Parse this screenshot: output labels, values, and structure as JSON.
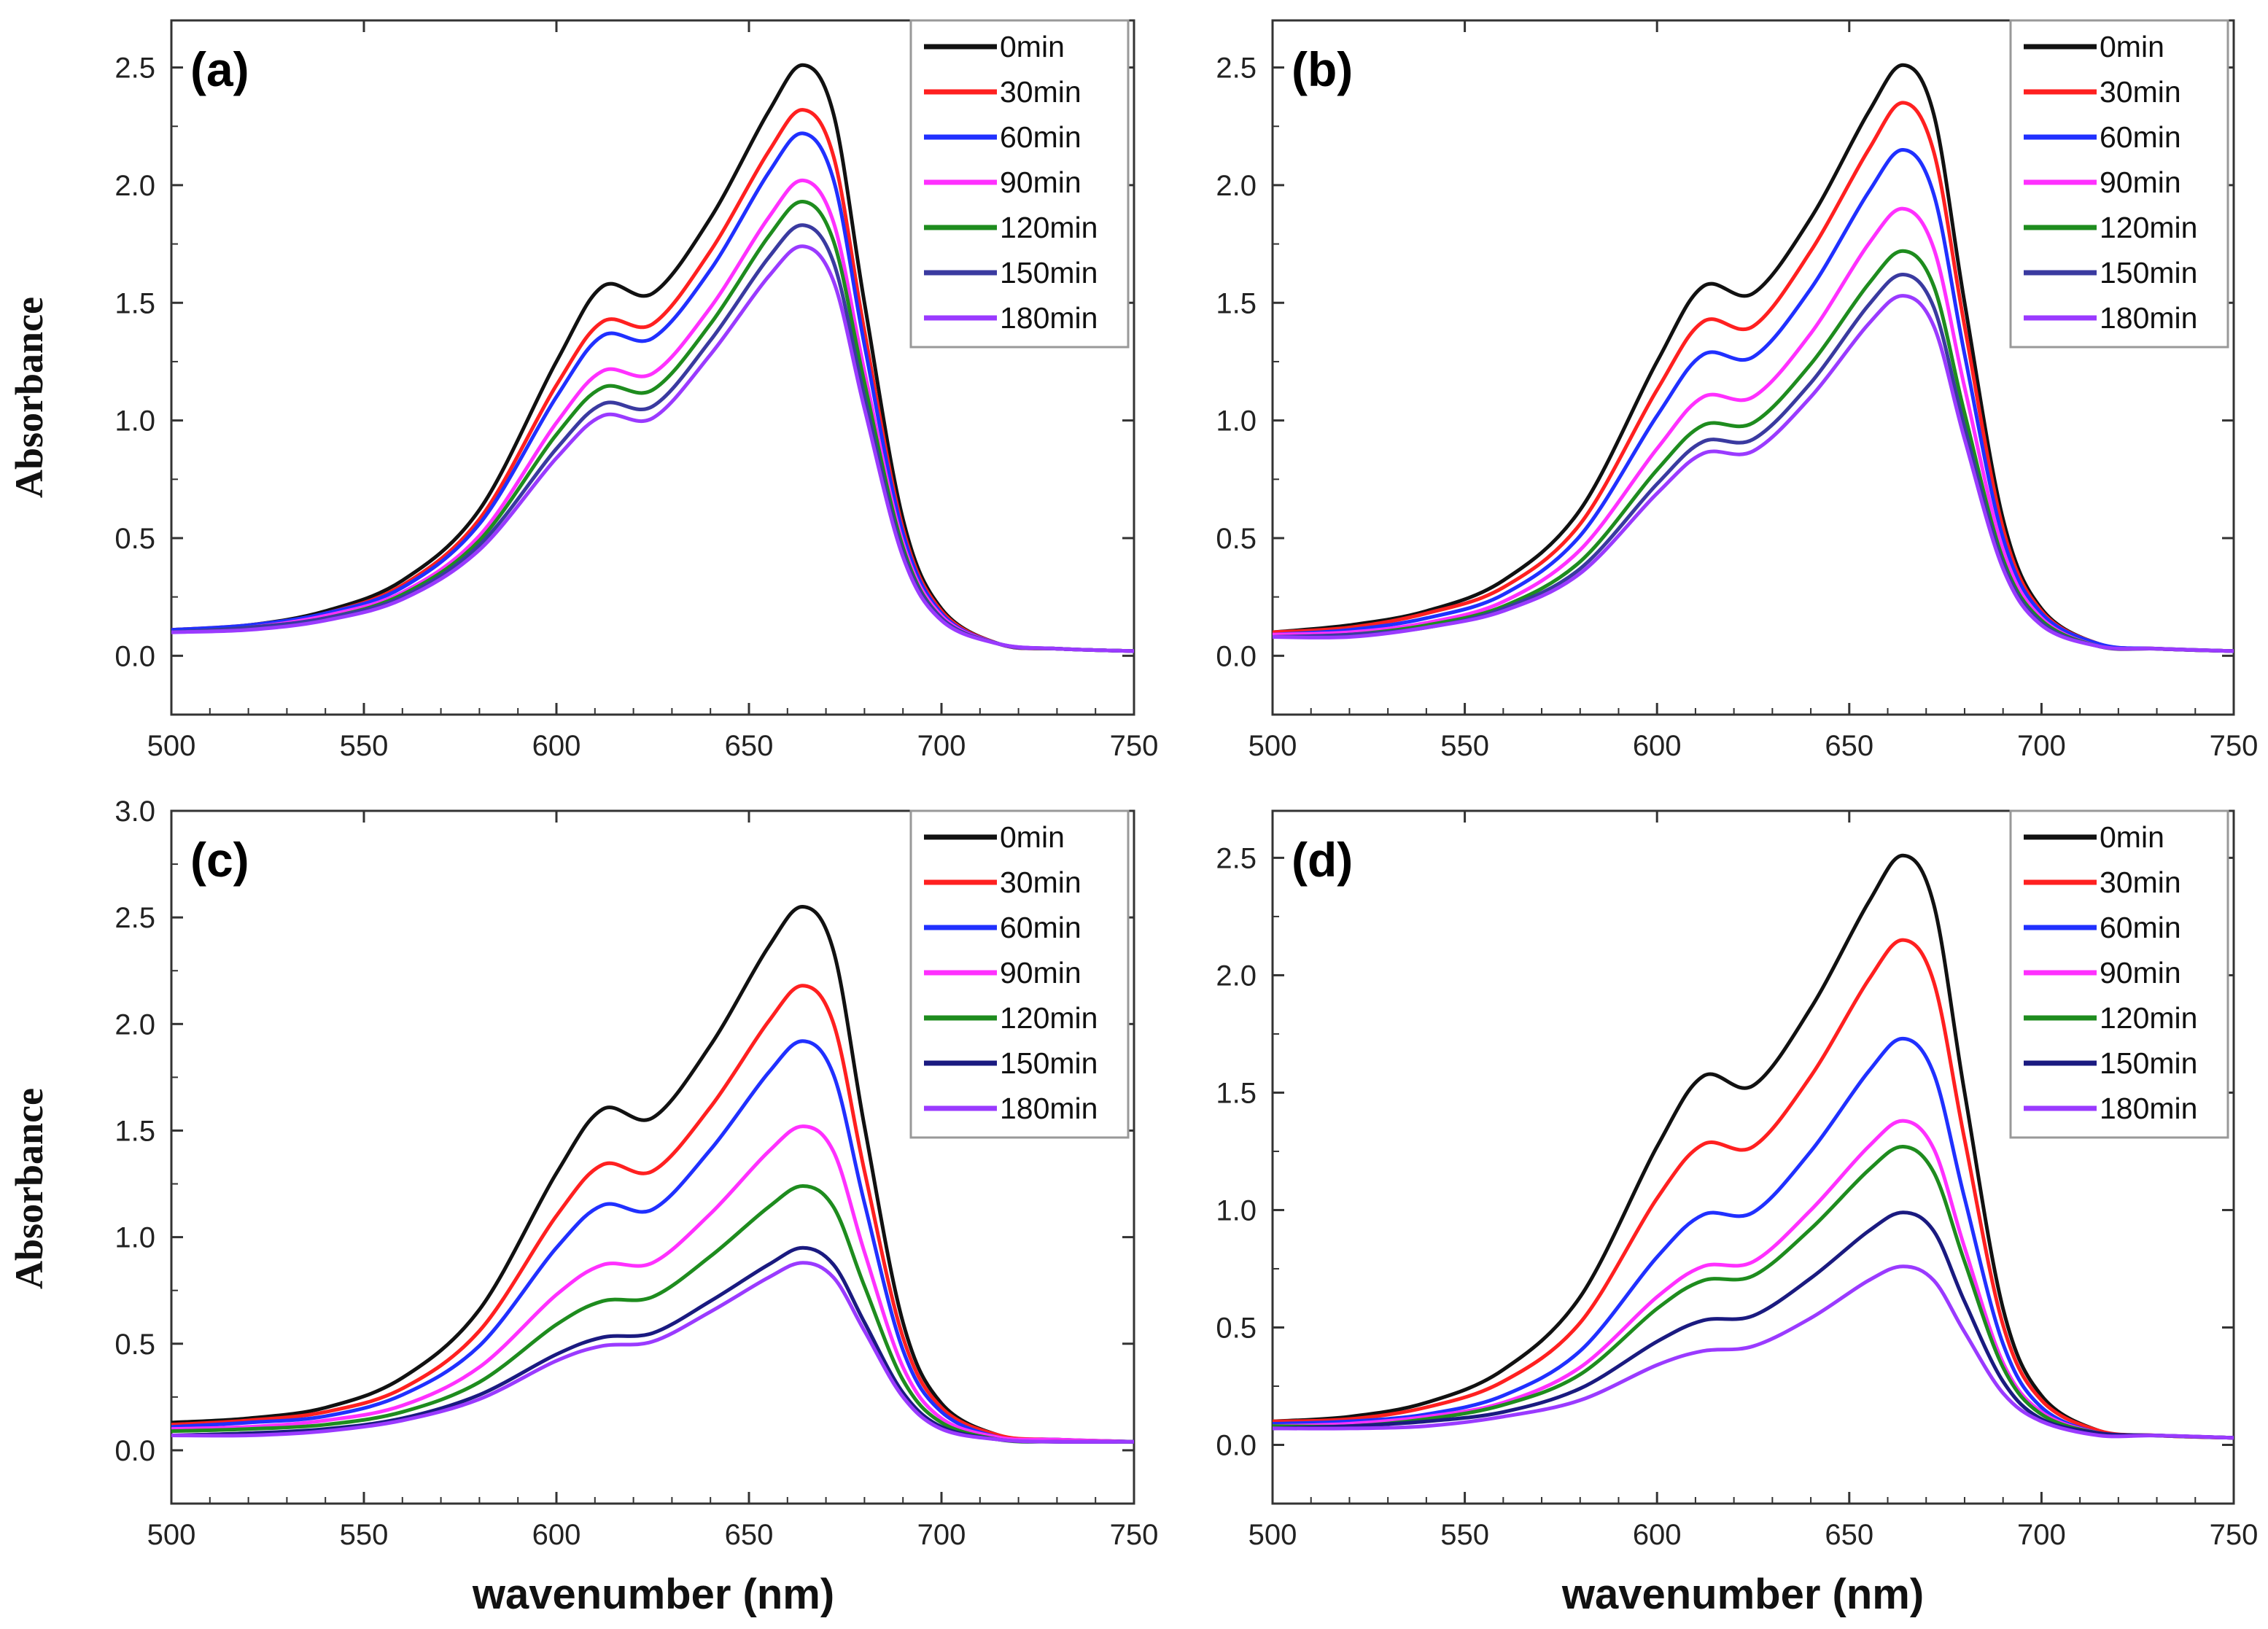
{
  "chart_data": [
    {
      "type": "line",
      "panel": "(a)",
      "xlabel": "wavenumber (nm)",
      "ylabel": "Absorbance",
      "xlim": [
        500,
        750
      ],
      "ylim": [
        -0.25,
        2.7
      ],
      "xticks": [
        "500",
        "550",
        "600",
        "650",
        "700",
        "750"
      ],
      "yticks": [
        "0.0",
        "0.5",
        "1.0",
        "1.5",
        "2.0",
        "2.5"
      ],
      "legend_position": "top-right",
      "x": [
        500,
        520,
        540,
        560,
        580,
        600,
        612,
        625,
        640,
        655,
        664,
        672,
        680,
        690,
        700,
        715,
        730,
        750
      ],
      "series": [
        {
          "name": "0min",
          "color": "#111111",
          "values": [
            0.11,
            0.13,
            0.19,
            0.32,
            0.62,
            1.25,
            1.57,
            1.54,
            1.86,
            2.31,
            2.51,
            2.3,
            1.5,
            0.58,
            0.2,
            0.05,
            0.03,
            0.02
          ]
        },
        {
          "name": "30min",
          "color": "#ff2020",
          "values": [
            0.11,
            0.13,
            0.18,
            0.3,
            0.58,
            1.15,
            1.42,
            1.41,
            1.72,
            2.14,
            2.32,
            2.12,
            1.38,
            0.54,
            0.19,
            0.05,
            0.03,
            0.02
          ]
        },
        {
          "name": "60min",
          "color": "#2030ff",
          "values": [
            0.11,
            0.13,
            0.18,
            0.29,
            0.56,
            1.1,
            1.36,
            1.35,
            1.64,
            2.05,
            2.22,
            2.02,
            1.32,
            0.52,
            0.18,
            0.05,
            0.03,
            0.02
          ]
        },
        {
          "name": "90min",
          "color": "#ff30ff",
          "values": [
            0.1,
            0.12,
            0.17,
            0.27,
            0.51,
            0.99,
            1.21,
            1.2,
            1.48,
            1.86,
            2.02,
            1.84,
            1.21,
            0.48,
            0.17,
            0.05,
            0.03,
            0.02
          ]
        },
        {
          "name": "120min",
          "color": "#1e8c1e",
          "values": [
            0.1,
            0.12,
            0.16,
            0.26,
            0.49,
            0.94,
            1.14,
            1.13,
            1.41,
            1.78,
            1.93,
            1.76,
            1.16,
            0.46,
            0.16,
            0.05,
            0.03,
            0.02
          ]
        },
        {
          "name": "150min",
          "color": "#3a3aa0",
          "values": [
            0.1,
            0.12,
            0.16,
            0.25,
            0.47,
            0.88,
            1.07,
            1.06,
            1.34,
            1.69,
            1.83,
            1.67,
            1.1,
            0.44,
            0.16,
            0.05,
            0.03,
            0.02
          ]
        },
        {
          "name": "180min",
          "color": "#9a3aff",
          "values": [
            0.1,
            0.11,
            0.15,
            0.24,
            0.45,
            0.84,
            1.02,
            1.01,
            1.28,
            1.61,
            1.74,
            1.59,
            1.05,
            0.42,
            0.15,
            0.05,
            0.03,
            0.02
          ]
        }
      ]
    },
    {
      "type": "line",
      "panel": "(b)",
      "xlabel": "wavenumber (nm)",
      "ylabel": "Absorbance",
      "xlim": [
        500,
        750
      ],
      "ylim": [
        -0.25,
        2.7
      ],
      "xticks": [
        "500",
        "550",
        "600",
        "650",
        "700",
        "750"
      ],
      "yticks": [
        "0.0",
        "0.5",
        "1.0",
        "1.5",
        "2.0",
        "2.5"
      ],
      "legend_position": "top-right",
      "x": [
        500,
        520,
        540,
        560,
        580,
        600,
        612,
        625,
        640,
        655,
        664,
        672,
        680,
        690,
        700,
        715,
        730,
        750
      ],
      "series": [
        {
          "name": "0min",
          "color": "#111111",
          "values": [
            0.1,
            0.13,
            0.19,
            0.32,
            0.62,
            1.25,
            1.57,
            1.54,
            1.86,
            2.31,
            2.51,
            2.3,
            1.5,
            0.58,
            0.2,
            0.05,
            0.03,
            0.02
          ]
        },
        {
          "name": "30min",
          "color": "#ff2020",
          "values": [
            0.1,
            0.12,
            0.18,
            0.29,
            0.56,
            1.13,
            1.42,
            1.4,
            1.72,
            2.15,
            2.35,
            2.14,
            1.4,
            0.54,
            0.19,
            0.05,
            0.03,
            0.02
          ]
        },
        {
          "name": "60min",
          "color": "#2030ff",
          "values": [
            0.09,
            0.11,
            0.16,
            0.26,
            0.51,
            1.02,
            1.28,
            1.27,
            1.56,
            1.97,
            2.15,
            1.96,
            1.28,
            0.5,
            0.18,
            0.05,
            0.03,
            0.02
          ]
        },
        {
          "name": "90min",
          "color": "#ff30ff",
          "values": [
            0.09,
            0.1,
            0.14,
            0.23,
            0.45,
            0.88,
            1.1,
            1.1,
            1.37,
            1.75,
            1.9,
            1.73,
            1.14,
            0.45,
            0.16,
            0.04,
            0.03,
            0.02
          ]
        },
        {
          "name": "120min",
          "color": "#1e8c1e",
          "values": [
            0.08,
            0.09,
            0.13,
            0.21,
            0.4,
            0.79,
            0.98,
            0.99,
            1.24,
            1.58,
            1.72,
            1.57,
            1.03,
            0.41,
            0.15,
            0.04,
            0.03,
            0.02
          ]
        },
        {
          "name": "150min",
          "color": "#3a3aa0",
          "values": [
            0.08,
            0.09,
            0.12,
            0.2,
            0.37,
            0.73,
            0.91,
            0.92,
            1.16,
            1.49,
            1.62,
            1.48,
            0.97,
            0.39,
            0.14,
            0.04,
            0.03,
            0.02
          ]
        },
        {
          "name": "180min",
          "color": "#9a3aff",
          "values": [
            0.08,
            0.08,
            0.12,
            0.19,
            0.35,
            0.69,
            0.86,
            0.87,
            1.1,
            1.41,
            1.53,
            1.4,
            0.92,
            0.37,
            0.13,
            0.04,
            0.03,
            0.02
          ]
        }
      ]
    },
    {
      "type": "line",
      "panel": "(c)",
      "xlabel": "wavenumber (nm)",
      "ylabel": "Absorbance",
      "xlim": [
        500,
        750
      ],
      "ylim": [
        -0.25,
        3.0
      ],
      "xticks": [
        "500",
        "550",
        "600",
        "650",
        "700",
        "750"
      ],
      "yticks": [
        "0.0",
        "0.5",
        "1.0",
        "1.5",
        "2.0",
        "2.5",
        "3.0"
      ],
      "legend_position": "top-right",
      "x": [
        500,
        520,
        540,
        560,
        580,
        600,
        612,
        625,
        640,
        655,
        664,
        672,
        680,
        690,
        700,
        715,
        730,
        750
      ],
      "series": [
        {
          "name": "0min",
          "color": "#111111",
          "values": [
            0.13,
            0.15,
            0.2,
            0.34,
            0.66,
            1.3,
            1.6,
            1.56,
            1.9,
            2.36,
            2.55,
            2.34,
            1.52,
            0.6,
            0.22,
            0.07,
            0.05,
            0.04
          ]
        },
        {
          "name": "30min",
          "color": "#ff2020",
          "values": [
            0.12,
            0.14,
            0.18,
            0.29,
            0.56,
            1.1,
            1.34,
            1.31,
            1.61,
            2.01,
            2.18,
            2.0,
            1.31,
            0.53,
            0.2,
            0.07,
            0.05,
            0.04
          ]
        },
        {
          "name": "60min",
          "color": "#2030ff",
          "values": [
            0.11,
            0.13,
            0.16,
            0.26,
            0.49,
            0.95,
            1.15,
            1.13,
            1.41,
            1.77,
            1.92,
            1.76,
            1.16,
            0.47,
            0.18,
            0.06,
            0.05,
            0.04
          ]
        },
        {
          "name": "90min",
          "color": "#ff30ff",
          "values": [
            0.1,
            0.11,
            0.14,
            0.21,
            0.39,
            0.73,
            0.87,
            0.88,
            1.11,
            1.4,
            1.52,
            1.4,
            0.93,
            0.39,
            0.15,
            0.06,
            0.05,
            0.04
          ]
        },
        {
          "name": "120min",
          "color": "#1e8c1e",
          "values": [
            0.09,
            0.1,
            0.12,
            0.18,
            0.32,
            0.59,
            0.7,
            0.72,
            0.91,
            1.14,
            1.24,
            1.14,
            0.77,
            0.33,
            0.13,
            0.05,
            0.04,
            0.04
          ]
        },
        {
          "name": "150min",
          "color": "#1a1a80",
          "values": [
            0.07,
            0.08,
            0.1,
            0.15,
            0.26,
            0.45,
            0.53,
            0.55,
            0.7,
            0.87,
            0.95,
            0.87,
            0.6,
            0.27,
            0.11,
            0.05,
            0.04,
            0.04
          ]
        },
        {
          "name": "180min",
          "color": "#9a3aff",
          "values": [
            0.07,
            0.07,
            0.09,
            0.14,
            0.24,
            0.42,
            0.49,
            0.51,
            0.65,
            0.81,
            0.88,
            0.81,
            0.56,
            0.25,
            0.1,
            0.05,
            0.04,
            0.04
          ]
        }
      ]
    },
    {
      "type": "line",
      "panel": "(d)",
      "xlabel": "wavenumber (nm)",
      "ylabel": "Absorbance",
      "xlim": [
        500,
        750
      ],
      "ylim": [
        -0.25,
        2.7
      ],
      "xticks": [
        "500",
        "550",
        "600",
        "650",
        "700",
        "750"
      ],
      "yticks": [
        "0.0",
        "0.5",
        "1.0",
        "1.5",
        "2.0",
        "2.5"
      ],
      "legend_position": "top-right",
      "x": [
        500,
        520,
        540,
        560,
        580,
        600,
        612,
        625,
        640,
        655,
        664,
        672,
        680,
        690,
        700,
        715,
        730,
        750
      ],
      "series": [
        {
          "name": "0min",
          "color": "#111111",
          "values": [
            0.1,
            0.12,
            0.18,
            0.32,
            0.63,
            1.27,
            1.57,
            1.53,
            1.86,
            2.31,
            2.51,
            2.3,
            1.5,
            0.58,
            0.21,
            0.06,
            0.04,
            0.03
          ]
        },
        {
          "name": "30min",
          "color": "#ff2020",
          "values": [
            0.1,
            0.11,
            0.16,
            0.27,
            0.52,
            1.05,
            1.28,
            1.27,
            1.57,
            1.98,
            2.15,
            1.97,
            1.3,
            0.51,
            0.19,
            0.06,
            0.04,
            0.03
          ]
        },
        {
          "name": "60min",
          "color": "#2030ff",
          "values": [
            0.09,
            0.1,
            0.13,
            0.21,
            0.4,
            0.8,
            0.98,
            0.99,
            1.25,
            1.59,
            1.73,
            1.58,
            1.05,
            0.43,
            0.16,
            0.05,
            0.04,
            0.03
          ]
        },
        {
          "name": "90min",
          "color": "#ff30ff",
          "values": [
            0.08,
            0.09,
            0.12,
            0.18,
            0.33,
            0.63,
            0.76,
            0.78,
            1.0,
            1.27,
            1.38,
            1.26,
            0.84,
            0.35,
            0.14,
            0.05,
            0.04,
            0.03
          ]
        },
        {
          "name": "120min",
          "color": "#1e8c1e",
          "values": [
            0.08,
            0.08,
            0.11,
            0.17,
            0.3,
            0.58,
            0.7,
            0.72,
            0.92,
            1.17,
            1.27,
            1.16,
            0.78,
            0.33,
            0.13,
            0.05,
            0.04,
            0.03
          ]
        },
        {
          "name": "150min",
          "color": "#1a1a80",
          "values": [
            0.07,
            0.08,
            0.1,
            0.14,
            0.24,
            0.44,
            0.53,
            0.55,
            0.71,
            0.91,
            0.99,
            0.91,
            0.61,
            0.27,
            0.11,
            0.05,
            0.04,
            0.03
          ]
        },
        {
          "name": "180min",
          "color": "#9a3aff",
          "values": [
            0.07,
            0.07,
            0.08,
            0.12,
            0.19,
            0.34,
            0.4,
            0.42,
            0.54,
            0.7,
            0.76,
            0.7,
            0.48,
            0.22,
            0.1,
            0.04,
            0.04,
            0.03
          ]
        }
      ]
    }
  ]
}
